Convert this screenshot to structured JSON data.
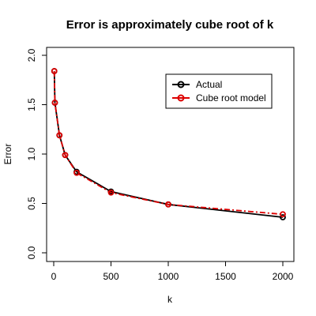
{
  "chart_data": {
    "type": "line",
    "title": "Error is approximately cube root of k",
    "xlabel": "k",
    "ylabel": "Error",
    "xlim": [
      0,
      2000
    ],
    "ylim": [
      0.0,
      2.0
    ],
    "xticks": [
      "0",
      "500",
      "1000",
      "1500",
      "2000"
    ],
    "yticks": [
      "0.0",
      "0.5",
      "1.0",
      "1.5",
      "2.0"
    ],
    "legend_position": "top-right",
    "grid": false,
    "series": [
      {
        "name": "Actual",
        "color": "#000000",
        "line_style": "solid",
        "marker": "open-circle",
        "points": [
          [
            5,
            1.84
          ],
          [
            10,
            1.52
          ],
          [
            50,
            1.19
          ],
          [
            100,
            0.99
          ],
          [
            200,
            0.82
          ],
          [
            500,
            0.62
          ],
          [
            1000,
            0.49
          ],
          [
            2000,
            0.36
          ]
        ]
      },
      {
        "name": "Cube root model",
        "color": "#dd0000",
        "line_style": "dashdot",
        "marker": "open-circle",
        "points": [
          [
            5,
            1.84
          ],
          [
            10,
            1.52
          ],
          [
            50,
            1.19
          ],
          [
            100,
            0.99
          ],
          [
            200,
            0.81
          ],
          [
            500,
            0.61
          ],
          [
            1000,
            0.49
          ],
          [
            2000,
            0.39
          ]
        ]
      }
    ]
  }
}
